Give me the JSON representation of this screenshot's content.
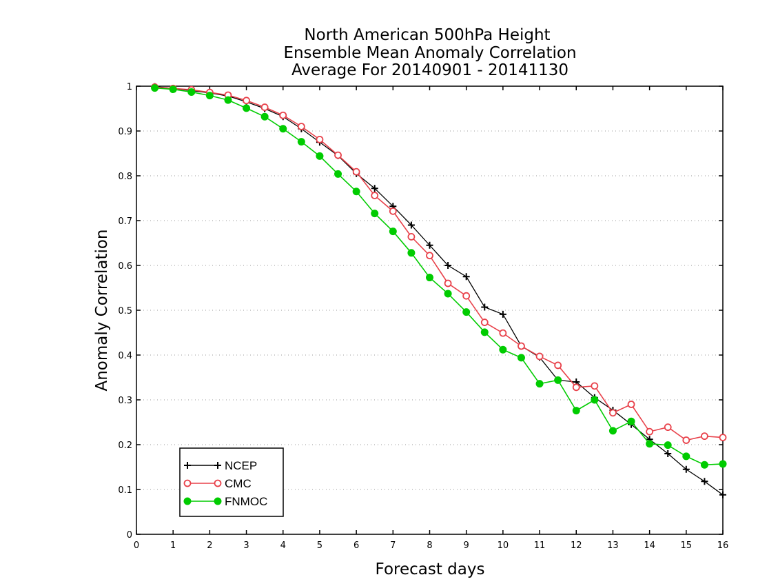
{
  "chart_data": {
    "type": "line",
    "title_lines": [
      "North American 500hPa Height",
      "Ensemble Mean Anomaly Correlation",
      "Average For 20140901 - 20141130"
    ],
    "xlabel": "Forecast days",
    "ylabel": "Anomaly Correlation",
    "xlim": [
      0,
      16
    ],
    "ylim": [
      0,
      1
    ],
    "xticks": [
      "0",
      "1",
      "2",
      "3",
      "4",
      "5",
      "6",
      "7",
      "8",
      "9",
      "10",
      "11",
      "12",
      "13",
      "14",
      "15",
      "16"
    ],
    "yticks": [
      "0",
      "0.1",
      "0.2",
      "0.3",
      "0.4",
      "0.5",
      "0.6",
      "0.7",
      "0.8",
      "0.9",
      "1"
    ],
    "grid": "horizontal dotted",
    "legend_position": "bottom-left",
    "x": [
      0.5,
      1,
      1.5,
      2,
      2.5,
      3,
      3.5,
      4,
      4.5,
      5,
      5.5,
      6,
      6.5,
      7,
      7.5,
      8,
      8.5,
      9,
      9.5,
      10,
      10.5,
      11,
      11.5,
      12,
      12.5,
      13,
      13.5,
      14,
      14.5,
      15,
      15.5,
      16
    ],
    "series": [
      {
        "name": "NCEP",
        "color": "#000000",
        "marker": "plus",
        "values": [
          0.999,
          0.995,
          0.99,
          0.985,
          0.978,
          0.965,
          0.95,
          0.932,
          0.905,
          0.875,
          0.845,
          0.805,
          0.772,
          0.732,
          0.69,
          0.645,
          0.6,
          0.575,
          0.507,
          0.491,
          0.42,
          0.395,
          0.344,
          0.34,
          0.305,
          0.277,
          0.245,
          0.212,
          0.18,
          0.145,
          0.118,
          0.088
        ]
      },
      {
        "name": "CMC",
        "color": "#e8414a",
        "marker": "open-circle",
        "values": [
          0.998,
          0.995,
          0.992,
          0.986,
          0.98,
          0.968,
          0.953,
          0.935,
          0.91,
          0.881,
          0.846,
          0.809,
          0.756,
          0.721,
          0.664,
          0.622,
          0.56,
          0.532,
          0.473,
          0.449,
          0.42,
          0.397,
          0.377,
          0.328,
          0.331,
          0.271,
          0.29,
          0.229,
          0.239,
          0.21,
          0.219,
          0.216
        ]
      },
      {
        "name": "FNMOC",
        "color": "#00cc00",
        "marker": "filled-circle",
        "values": [
          0.996,
          0.993,
          0.987,
          0.979,
          0.969,
          0.951,
          0.932,
          0.905,
          0.876,
          0.844,
          0.804,
          0.765,
          0.716,
          0.676,
          0.628,
          0.573,
          0.537,
          0.496,
          0.451,
          0.412,
          0.394,
          0.336,
          0.344,
          0.276,
          0.3,
          0.231,
          0.252,
          0.202,
          0.199,
          0.174,
          0.155,
          0.157
        ]
      }
    ]
  }
}
